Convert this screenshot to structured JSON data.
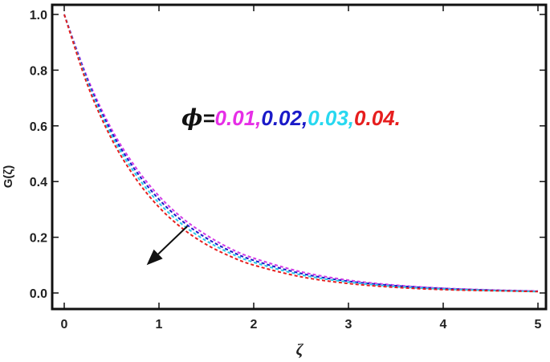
{
  "chart_data": {
    "type": "line",
    "title": "",
    "xlabel": "ζ",
    "ylabel": "G(ζ)",
    "xlim": [
      0,
      5
    ],
    "ylim": [
      0,
      1.05
    ],
    "x_ticks": [
      "0",
      "1",
      "2",
      "3",
      "4",
      "5"
    ],
    "y_ticks": [
      "0.0",
      "0.2",
      "0.4",
      "0.6",
      "0.8",
      "1.0"
    ],
    "grid": false,
    "line_style": "dashed",
    "x": [
      0,
      0.25,
      0.5,
      0.75,
      1,
      1.25,
      1.5,
      1.75,
      2,
      2.5,
      3,
      3.5,
      4,
      4.5,
      5
    ],
    "series": [
      {
        "color": "#d23ce6",
        "values": [
          1.0,
          0.768,
          0.588,
          0.453,
          0.348,
          0.268,
          0.208,
          0.16,
          0.125,
          0.076,
          0.046,
          0.028,
          0.017,
          0.011,
          0.007
        ]
      },
      {
        "color": "#1a1ac8",
        "values": [
          1.0,
          0.76,
          0.577,
          0.441,
          0.336,
          0.257,
          0.197,
          0.151,
          0.117,
          0.07,
          0.042,
          0.026,
          0.016,
          0.01,
          0.006
        ]
      },
      {
        "color": "#28c8e6",
        "values": [
          1.0,
          0.752,
          0.566,
          0.428,
          0.323,
          0.245,
          0.187,
          0.143,
          0.11,
          0.065,
          0.039,
          0.023,
          0.014,
          0.009,
          0.005
        ]
      },
      {
        "color": "#e61e1e",
        "values": [
          1.0,
          0.743,
          0.553,
          0.413,
          0.308,
          0.231,
          0.174,
          0.132,
          0.1,
          0.058,
          0.034,
          0.02,
          0.012,
          0.008,
          0.005
        ]
      }
    ],
    "annotation": {
      "symbol": "ϕ",
      "equals": "=",
      "parts": [
        {
          "text": "0.01,",
          "color": "#e62ee6"
        },
        {
          "text": "0.02,",
          "color": "#1a1ac8"
        },
        {
          "text": "0.03,",
          "color": "#28d8f0"
        },
        {
          "text": "0.04.",
          "color": "#e61e1e"
        }
      ]
    },
    "arrow": {
      "from": [
        1.3,
        0.24
      ],
      "to": [
        0.87,
        0.1
      ]
    }
  }
}
